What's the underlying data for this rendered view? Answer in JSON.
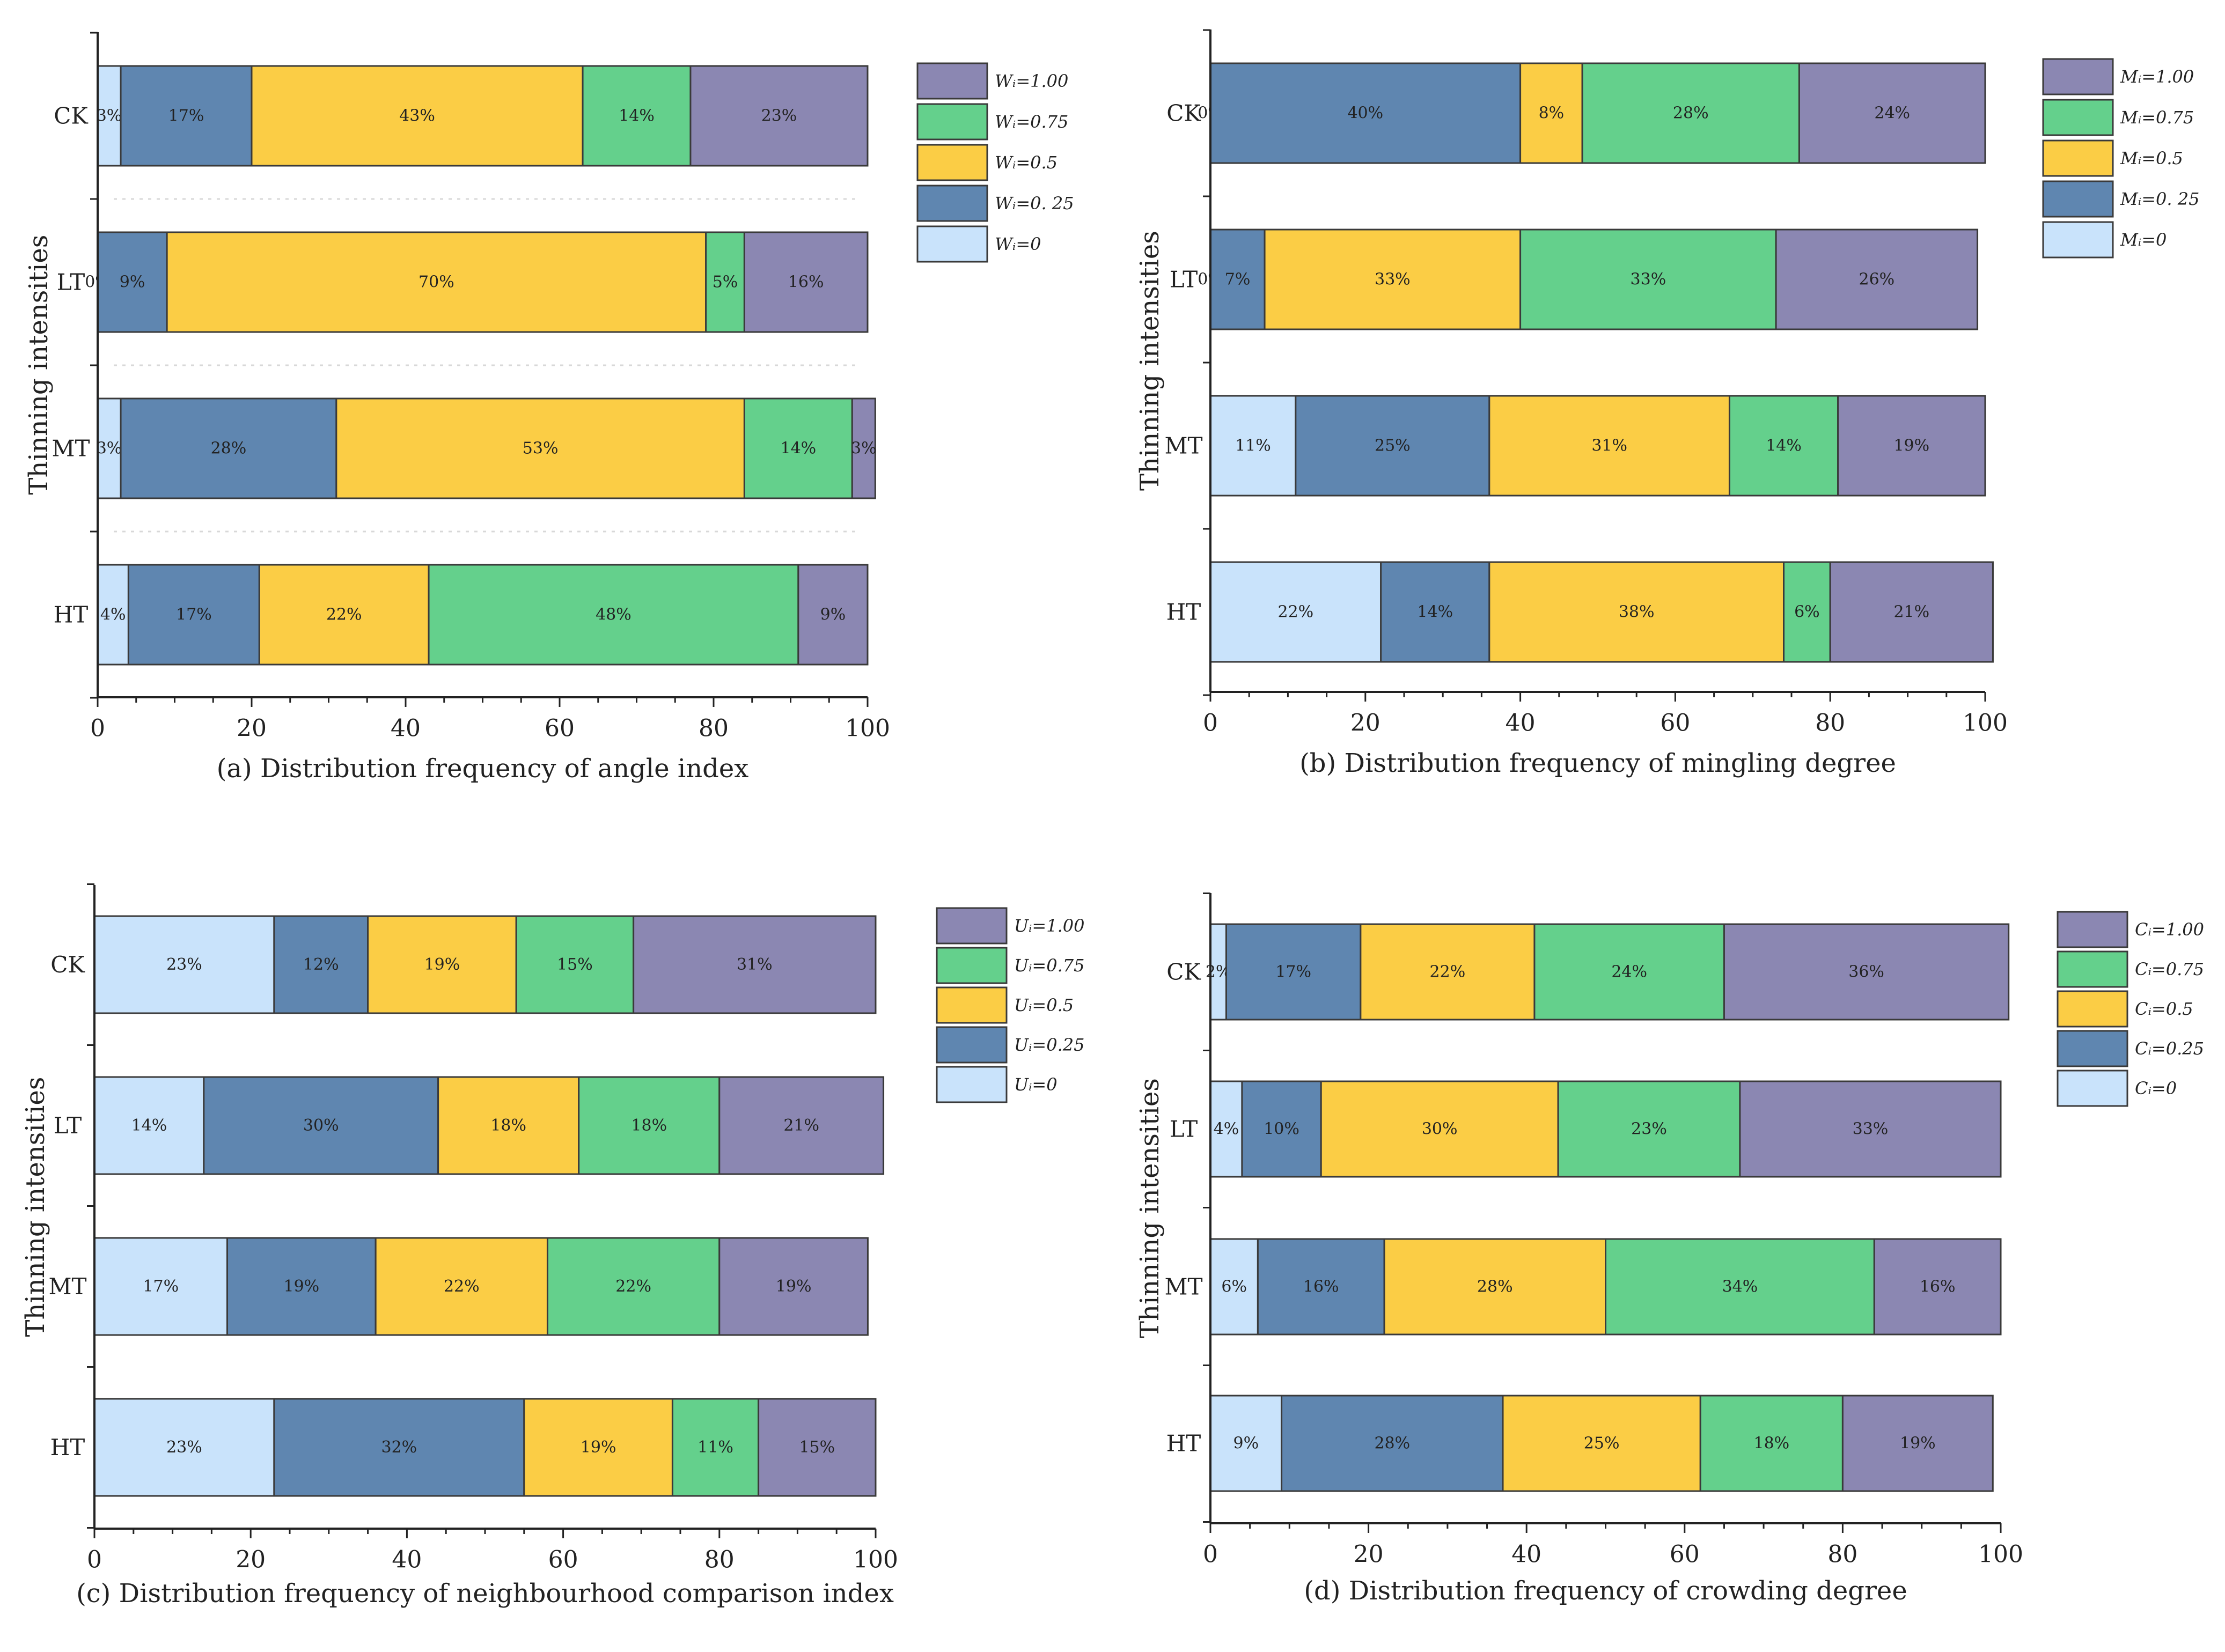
{
  "figure": {
    "y_axis_label": "Thinning intensities"
  },
  "chart_data": [
    {
      "type": "bar",
      "orientation": "horizontal",
      "stacked": true,
      "title": "(a) Distribution frequency of angle index",
      "ylabel": "Thinning intensities",
      "xlabel": "",
      "categories": [
        "CK",
        "LT",
        "MT",
        "HT"
      ],
      "xlim": [
        0,
        100
      ],
      "xticks": [
        0,
        20,
        40,
        60,
        80,
        100
      ],
      "grid": false,
      "legend_position": "right",
      "series": [
        {
          "name": "Wi=0",
          "legend_label": "Wᵢ=0",
          "color": "#c9e3fb",
          "values": [
            3,
            0,
            3,
            4
          ]
        },
        {
          "name": "Wi=0.25",
          "legend_label": "Wᵢ=0. 25",
          "color": "#5f86b0",
          "values": [
            17,
            9,
            28,
            17
          ]
        },
        {
          "name": "Wi=0.5",
          "legend_label": "Wᵢ=0.5",
          "color": "#fbcd45",
          "values": [
            43,
            70,
            53,
            22
          ]
        },
        {
          "name": "Wi=0.75",
          "legend_label": "Wᵢ=0.75",
          "color": "#64d08c",
          "values": [
            14,
            5,
            14,
            48
          ]
        },
        {
          "name": "Wi=1.00",
          "legend_label": "Wᵢ=1.00",
          "color": "#8b87b2",
          "values": [
            23,
            16,
            3,
            9
          ]
        }
      ]
    },
    {
      "type": "bar",
      "orientation": "horizontal",
      "stacked": true,
      "title": "(b) Distribution frequency of mingling degree",
      "ylabel": "Thinning intensities",
      "xlabel": "",
      "categories": [
        "CK",
        "LT",
        "MT",
        "HT"
      ],
      "xlim": [
        0,
        100
      ],
      "xticks": [
        0,
        20,
        40,
        60,
        80,
        100
      ],
      "grid": false,
      "legend_position": "right",
      "series": [
        {
          "name": "Mi=0",
          "legend_label": "Mᵢ=0",
          "color": "#c9e3fb",
          "values": [
            0,
            0,
            11,
            22
          ]
        },
        {
          "name": "Mi=0.25",
          "legend_label": "Mᵢ=0. 25",
          "color": "#5f86b0",
          "values": [
            40,
            7,
            25,
            14
          ]
        },
        {
          "name": "Mi=0.5",
          "legend_label": "Mᵢ=0.5",
          "color": "#fbcd45",
          "values": [
            8,
            33,
            31,
            38
          ]
        },
        {
          "name": "Mi=0.75",
          "legend_label": "Mᵢ=0.75",
          "color": "#64d08c",
          "values": [
            28,
            33,
            14,
            6
          ]
        },
        {
          "name": "Mi=1.00",
          "legend_label": "Mᵢ=1.00",
          "color": "#8b87b2",
          "values": [
            24,
            26,
            19,
            21
          ]
        }
      ]
    },
    {
      "type": "bar",
      "orientation": "horizontal",
      "stacked": true,
      "title": "(c) Distribution frequency of neighbourhood comparison index",
      "ylabel": "Thinning intensities",
      "xlabel": "",
      "categories": [
        "CK",
        "LT",
        "MT",
        "HT"
      ],
      "xlim": [
        0,
        100
      ],
      "xticks": [
        0,
        20,
        40,
        60,
        80,
        100
      ],
      "grid": false,
      "legend_position": "right",
      "series": [
        {
          "name": "Ui=0",
          "legend_label": "Uᵢ=0",
          "color": "#c9e3fb",
          "values": [
            23,
            14,
            17,
            23
          ]
        },
        {
          "name": "Ui=0.25",
          "legend_label": "Uᵢ=0.25",
          "color": "#5f86b0",
          "values": [
            12,
            30,
            19,
            32
          ]
        },
        {
          "name": "Ui=0.5",
          "legend_label": "Uᵢ=0.5",
          "color": "#fbcd45",
          "values": [
            19,
            18,
            22,
            19
          ]
        },
        {
          "name": "Ui=0.75",
          "legend_label": "Uᵢ=0.75",
          "color": "#64d08c",
          "values": [
            15,
            18,
            22,
            11
          ]
        },
        {
          "name": "Ui=1.00",
          "legend_label": "Uᵢ=1.00",
          "color": "#8b87b2",
          "values": [
            31,
            21,
            19,
            15
          ]
        }
      ]
    },
    {
      "type": "bar",
      "orientation": "horizontal",
      "stacked": true,
      "title": "(d) Distribution frequency of crowding degree",
      "ylabel": "Thinning intensities",
      "xlabel": "",
      "categories": [
        "CK",
        "LT",
        "MT",
        "HT"
      ],
      "xlim": [
        0,
        100
      ],
      "xticks": [
        0,
        20,
        40,
        60,
        80,
        100
      ],
      "grid": false,
      "legend_position": "right",
      "series": [
        {
          "name": "Ci=0",
          "legend_label": "Cᵢ=0",
          "color": "#c9e3fb",
          "values": [
            2,
            4,
            6,
            9
          ]
        },
        {
          "name": "Ci=0.25",
          "legend_label": "Cᵢ=0.25",
          "color": "#5f86b0",
          "values": [
            17,
            10,
            16,
            28
          ]
        },
        {
          "name": "Ci=0.5",
          "legend_label": "Cᵢ=0.5",
          "color": "#fbcd45",
          "values": [
            22,
            30,
            28,
            25
          ]
        },
        {
          "name": "Ci=0.75",
          "legend_label": "Cᵢ=0.75",
          "color": "#64d08c",
          "values": [
            24,
            23,
            34,
            18
          ]
        },
        {
          "name": "Ci=1.00",
          "legend_label": "Cᵢ=1.00",
          "color": "#8b87b2",
          "values": [
            36,
            33,
            16,
            19
          ]
        }
      ]
    }
  ]
}
